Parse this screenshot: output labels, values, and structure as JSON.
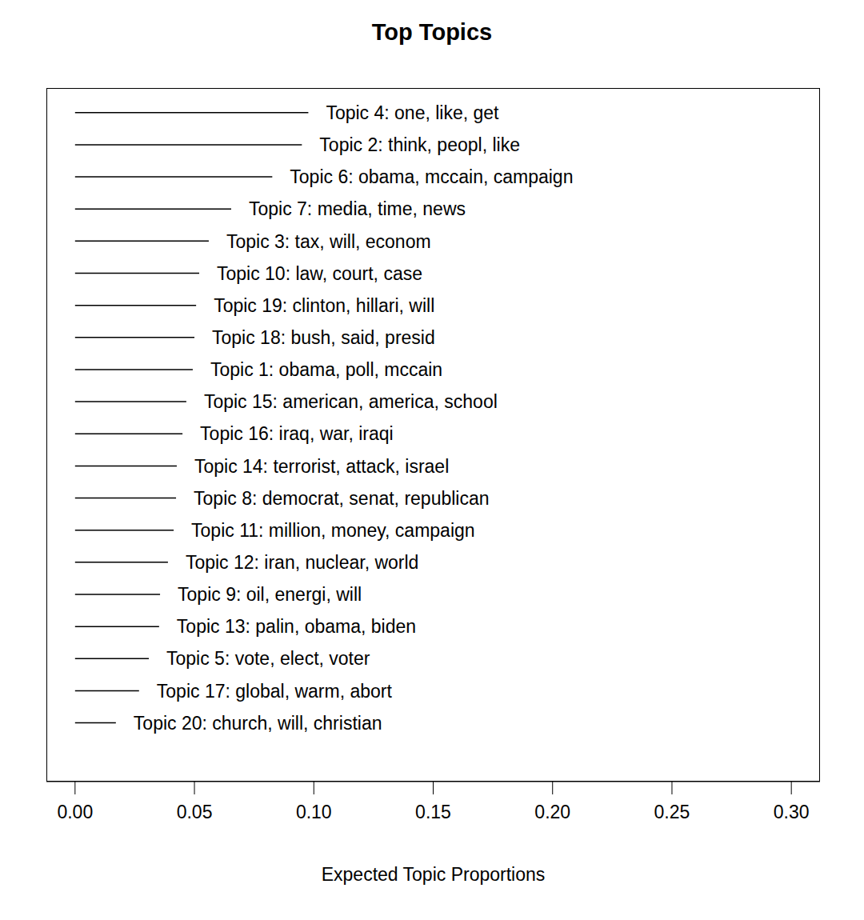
{
  "chart_data": {
    "type": "bar",
    "title": "Top Topics",
    "xlabel": "Expected Topic Proportions",
    "orientation": "horizontal",
    "categories": [
      "Topic 4: one, like, get",
      "Topic 2: think, peopl, like",
      "Topic 6: obama, mccain, campaign",
      "Topic 7: media, time, news",
      "Topic 3: tax, will, econom",
      "Topic 10: law, court, case",
      "Topic 19: clinton, hillari, will",
      "Topic 18: bush, said, presid",
      "Topic 1: obama, poll, mccain",
      "Topic 15: american, america, school",
      "Topic 16: iraq, war, iraqi",
      "Topic 14: terrorist, attack, israel",
      "Topic 8: democrat, senat, republican",
      "Topic 11: million, money, campaign",
      "Topic 12: iran, nuclear, world",
      "Topic 9: oil, energi, will",
      "Topic 13: palin, obama, biden",
      "Topic 5: vote, elect, voter",
      "Topic 17: global, warm, abort",
      "Topic 20: church, will, christian"
    ],
    "values": [
      0.0977,
      0.095,
      0.0826,
      0.0654,
      0.056,
      0.052,
      0.0507,
      0.05,
      0.0493,
      0.0466,
      0.045,
      0.0426,
      0.0423,
      0.0413,
      0.0389,
      0.0356,
      0.0352,
      0.0309,
      0.0268,
      0.0171
    ],
    "color": "#000000",
    "xlim": [
      -0.012,
      0.312
    ],
    "xticks": [
      {
        "value": 0,
        "label": "0.00"
      },
      {
        "value": 0.05,
        "label": "0.05"
      },
      {
        "value": 0.1,
        "label": "0.10"
      },
      {
        "value": 0.15,
        "label": "0.15"
      },
      {
        "value": 0.2,
        "label": "0.20"
      },
      {
        "value": 0.25,
        "label": "0.25"
      },
      {
        "value": 0.3,
        "label": "0.30"
      }
    ],
    "tick_labels": "x",
    "grid": false
  }
}
